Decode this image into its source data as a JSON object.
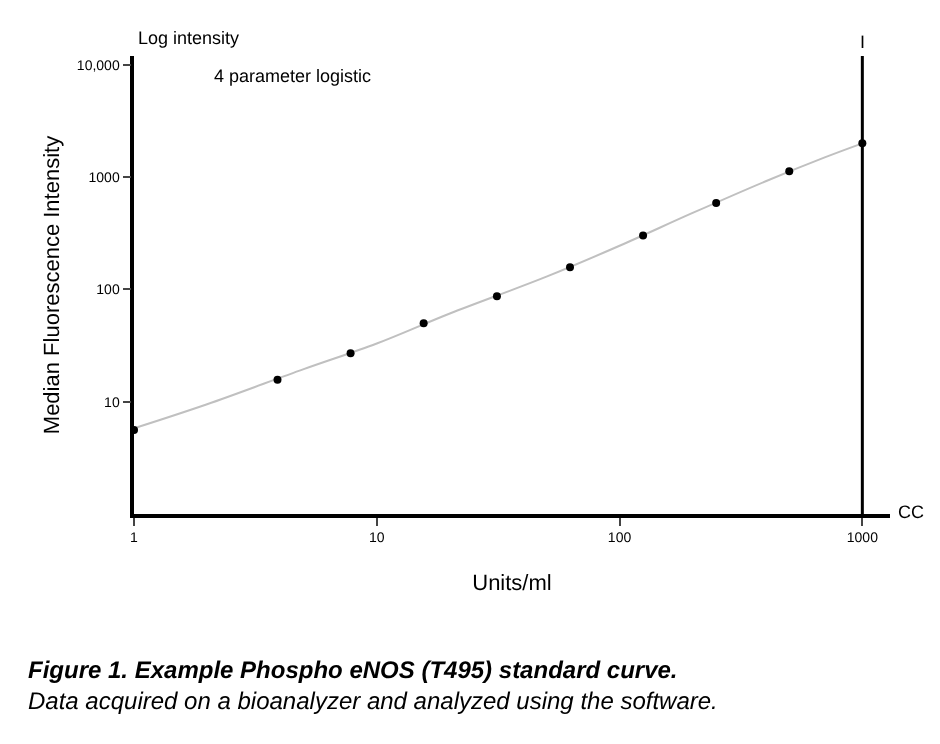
{
  "chart_data": {
    "type": "scatter",
    "xlabel": "Units/ml",
    "ylabel": "Median Fluorescence Intensity",
    "log": "xy",
    "x": [
      1,
      3.9,
      7.8,
      15.6,
      31.25,
      62.5,
      125,
      250,
      500,
      1000
    ],
    "series": [
      {
        "type": "line",
        "color": "#c0c0c0",
        "line_style": "solid",
        "marker": "none",
        "x": [
          1,
          2,
          5,
          10,
          20,
          50,
          100,
          200,
          400,
          700,
          1000
        ],
        "values": [
          5.8,
          9.5,
          19.5,
          33,
          61,
          130,
          245,
          480,
          920,
          1500,
          2000
        ]
      },
      {
        "color": "#000000",
        "values": [
          5.6,
          15.7,
          27,
          50,
          87,
          158,
          302,
          590,
          1130,
          2000
        ]
      }
    ],
    "marker": "circle",
    "xlim": [
      1,
      1300
    ],
    "ylim": [
      1,
      12000
    ],
    "xticks": [
      1,
      10,
      100,
      1000
    ],
    "yticks": [
      10,
      100,
      1000,
      {
        "value": 10000,
        "label": "10,000"
      }
    ],
    "ref_lines": [
      {
        "axis": "x",
        "value": 1000,
        "label": "I",
        "color": "#000000"
      }
    ],
    "annotations": [
      "Log intensity",
      "4 parameter logistic",
      "CC",
      "Figure 1. Example Phospho eNOS (T495) standard curve.",
      "Data acquired on a bioanalyzer and analyzed using the software."
    ]
  }
}
